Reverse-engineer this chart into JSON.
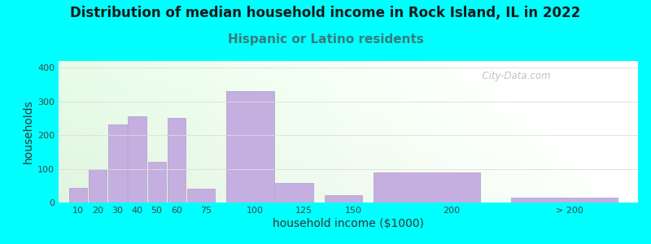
{
  "title": "Distribution of median household income in Rock Island, IL in 2022",
  "subtitle": "Hispanic or Latino residents",
  "xlabel": "household income ($1000)",
  "ylabel": "households",
  "background_color": "#00FFFF",
  "bar_color": "#c5aee0",
  "bar_edge_color": "#b09ccc",
  "bar_heights": [
    43,
    98,
    232,
    255,
    120,
    250,
    42,
    330,
    58,
    22,
    90,
    15
  ],
  "bar_lefts": [
    5,
    15,
    25,
    35,
    45,
    55,
    65,
    85,
    110,
    135,
    160,
    230
  ],
  "bar_widths": [
    10,
    10,
    10,
    10,
    10,
    10,
    15,
    25,
    20,
    20,
    55,
    55
  ],
  "xtick_positions": [
    10,
    20,
    30,
    40,
    50,
    60,
    75,
    100,
    125,
    150,
    200,
    260
  ],
  "xtick_labels": [
    "10",
    "20",
    "30",
    "40",
    "50",
    "60",
    "75",
    "100",
    "125",
    "150",
    "200",
    "> 200"
  ],
  "ytick_positions": [
    0,
    100,
    200,
    300,
    400
  ],
  "ytick_labels": [
    "0",
    "100",
    "200",
    "300",
    "400"
  ],
  "ylim": [
    0,
    420
  ],
  "xlim": [
    0,
    295
  ],
  "watermark": "  City-Data.com",
  "title_fontsize": 12,
  "subtitle_fontsize": 11,
  "axis_label_fontsize": 10,
  "tick_fontsize": 8,
  "subtitle_color": "#3a7a7a",
  "title_color": "#1a1a1a"
}
